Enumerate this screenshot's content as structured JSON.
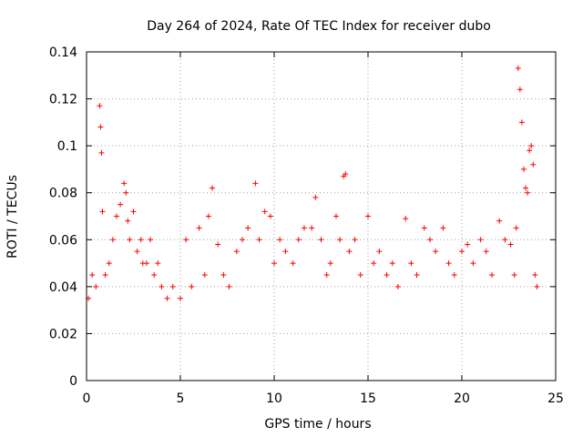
{
  "chart_data": {
    "type": "scatter",
    "title": "Day 264 of 2024, Rate Of TEC Index for receiver dubo",
    "xlabel": "GPS time / hours",
    "ylabel": "ROTI / TECUs",
    "xlim": [
      0,
      25
    ],
    "ylim": [
      0,
      0.14
    ],
    "xticks": [
      0,
      5,
      10,
      15,
      20,
      25
    ],
    "yticks": [
      0,
      0.02,
      0.04,
      0.06,
      0.08,
      0.1,
      0.12,
      0.14
    ],
    "xtick_labels": [
      "0",
      "5",
      "10",
      "15",
      "20",
      "25"
    ],
    "ytick_labels": [
      "0",
      "0.02",
      "0.04",
      "0.06",
      "0.08",
      "0.1",
      "0.12",
      "0.14"
    ],
    "grid": true,
    "marker": "+",
    "marker_color": "#ff0000",
    "series": [
      {
        "x": [
          0.1,
          0.3,
          0.5,
          0.7,
          0.75,
          0.8,
          0.85,
          1.0,
          1.2,
          1.4,
          1.6,
          1.8,
          2.0,
          2.1,
          2.2,
          2.3,
          2.5,
          2.7,
          2.9,
          3.0,
          3.2,
          3.4,
          3.6,
          3.8,
          4.0,
          4.3,
          4.6,
          5.0,
          5.3,
          5.6,
          6.0,
          6.3,
          6.5,
          6.7,
          7.0,
          7.3,
          7.6,
          8.0,
          8.3,
          8.6,
          9.0,
          9.2,
          9.5,
          9.8,
          10.0,
          10.3,
          10.6,
          11.0,
          11.3,
          11.6,
          12.0,
          12.2,
          12.5,
          12.8,
          13.0,
          13.3,
          13.5,
          13.7,
          13.8,
          14.0,
          14.3,
          14.6,
          15.0,
          15.3,
          15.6,
          16.0,
          16.3,
          16.6,
          17.0,
          17.3,
          17.6,
          18.0,
          18.3,
          18.6,
          19.0,
          19.3,
          19.6,
          20.0,
          20.3,
          20.6,
          21.0,
          21.3,
          21.6,
          22.0,
          22.3,
          22.6,
          22.8,
          22.9,
          23.0,
          23.1,
          23.2,
          23.3,
          23.4,
          23.5,
          23.6,
          23.7,
          23.8,
          23.9,
          24.0
        ],
        "y": [
          0.035,
          0.045,
          0.04,
          0.117,
          0.108,
          0.097,
          0.072,
          0.045,
          0.05,
          0.06,
          0.07,
          0.075,
          0.084,
          0.08,
          0.068,
          0.06,
          0.072,
          0.055,
          0.06,
          0.05,
          0.05,
          0.06,
          0.045,
          0.05,
          0.04,
          0.035,
          0.04,
          0.035,
          0.06,
          0.04,
          0.065,
          0.045,
          0.07,
          0.082,
          0.058,
          0.045,
          0.04,
          0.055,
          0.06,
          0.065,
          0.084,
          0.06,
          0.072,
          0.07,
          0.05,
          0.06,
          0.055,
          0.05,
          0.06,
          0.065,
          0.065,
          0.078,
          0.06,
          0.045,
          0.05,
          0.07,
          0.06,
          0.087,
          0.088,
          0.055,
          0.06,
          0.045,
          0.07,
          0.05,
          0.055,
          0.045,
          0.05,
          0.04,
          0.069,
          0.05,
          0.045,
          0.065,
          0.06,
          0.055,
          0.065,
          0.05,
          0.045,
          0.055,
          0.058,
          0.05,
          0.06,
          0.055,
          0.045,
          0.068,
          0.06,
          0.058,
          0.045,
          0.065,
          0.133,
          0.124,
          0.11,
          0.09,
          0.082,
          0.08,
          0.098,
          0.1,
          0.092,
          0.045,
          0.04
        ]
      }
    ]
  }
}
